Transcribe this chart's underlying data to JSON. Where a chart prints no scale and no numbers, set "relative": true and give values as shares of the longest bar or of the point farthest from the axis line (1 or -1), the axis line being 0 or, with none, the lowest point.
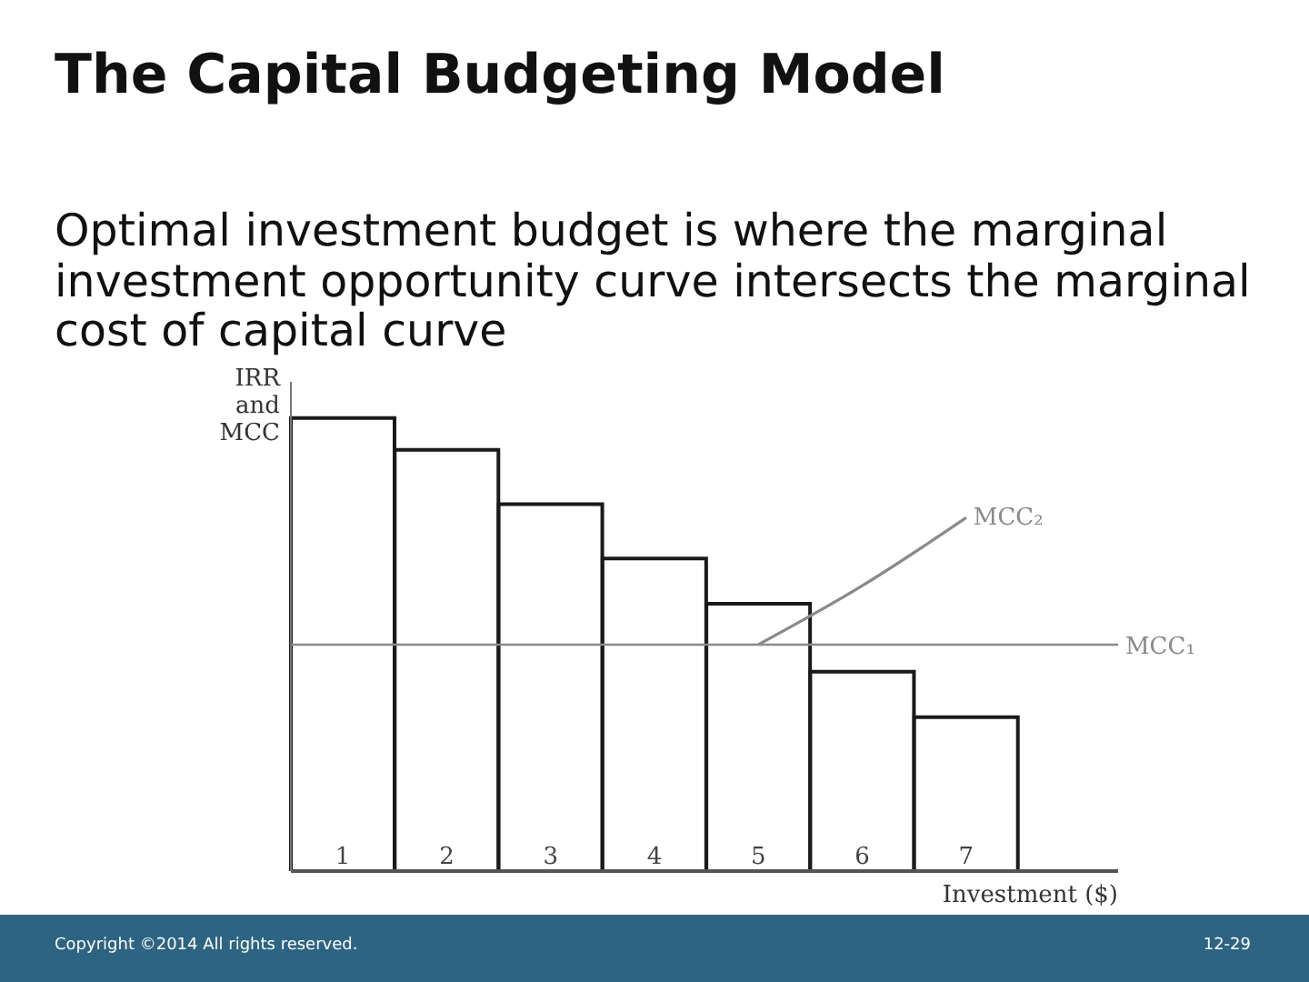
{
  "chart_data": {
    "type": "bar",
    "title": "The Capital Budgeting Model",
    "subtitle": "Optimal investment budget is where the marginal investment opportunity curve intersects the marginal cost of capital curve",
    "xlabel": "Investment ($)",
    "ylabel": "IRR and MCC",
    "categories": [
      "1",
      "2",
      "3",
      "4",
      "5",
      "6",
      "7"
    ],
    "relative": true,
    "marker": "none",
    "series": [
      {
        "color": "#1a1a1a",
        "values": [
          1,
          0.93,
          0.81,
          0.69,
          0.59,
          0.44,
          0.34
        ]
      },
      {
        "type": "line",
        "name": "MCC₂",
        "color": "#8a8a8a",
        "values": [
          null,
          null,
          null,
          null,
          0.5,
          0.63,
          0.78
        ]
      }
    ],
    "ref_lines": [
      {
        "axis": "y",
        "value": 0.5,
        "label": "MCC₁",
        "color": "#8a8a8a"
      }
    ],
    "annotations": [
      "Copyright ©2014 All rights reserved.",
      "12-29"
    ]
  }
}
